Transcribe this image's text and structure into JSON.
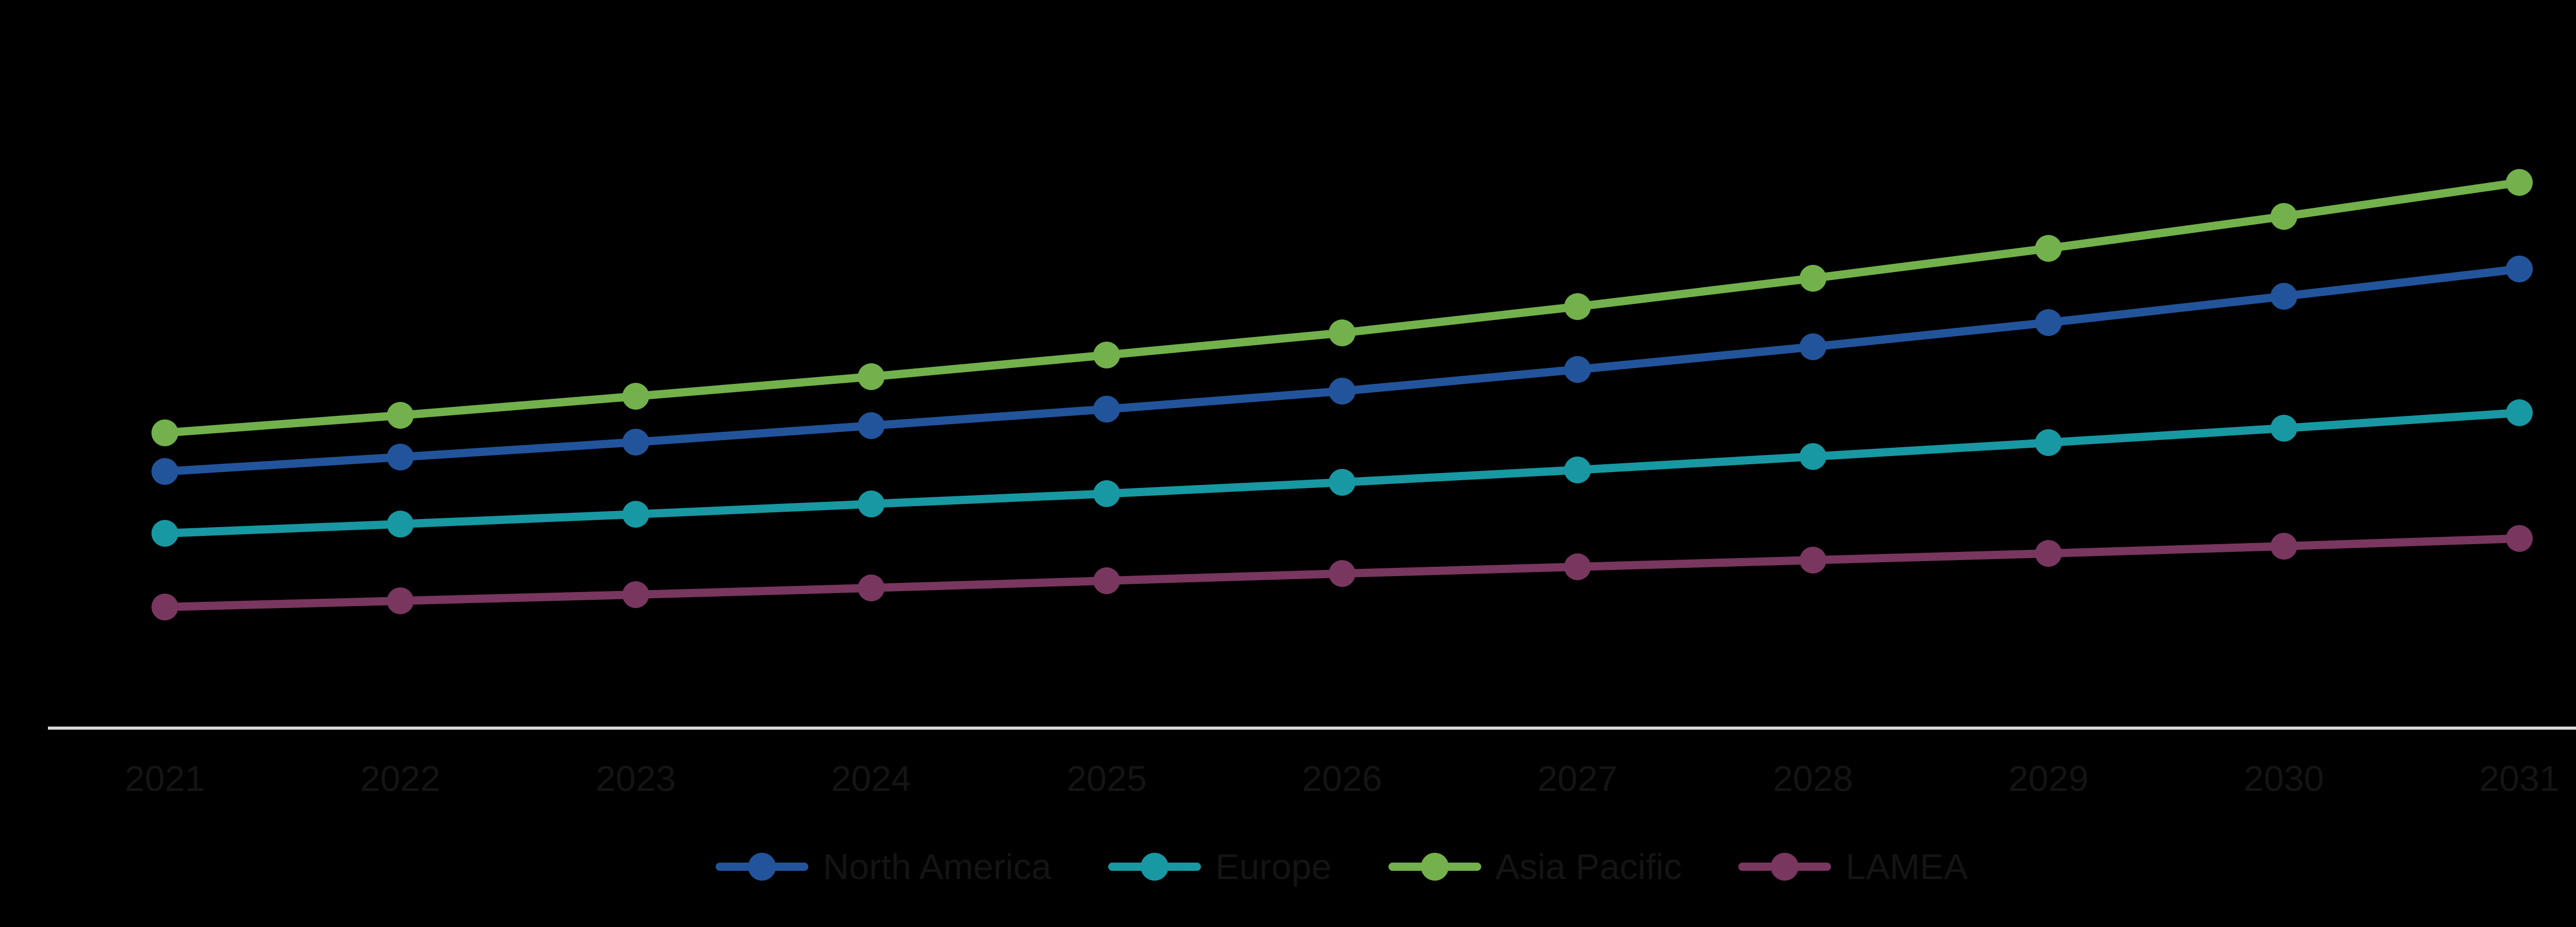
{
  "chart_data": {
    "type": "line",
    "title": "",
    "xlabel": "",
    "ylabel": "",
    "categories": [
      "2021",
      "2022",
      "2023",
      "2024",
      "2025",
      "2026",
      "2027",
      "2028",
      "2029",
      "2030",
      "2031"
    ],
    "series": [
      {
        "name": "North America",
        "color": "#22549C",
        "values": [
          50.0,
          52.8,
          55.7,
          58.9,
          62.1,
          65.6,
          69.8,
          74.2,
          78.9,
          84.0,
          89.3
        ]
      },
      {
        "name": "Europe",
        "color": "#1898A2",
        "values": [
          38.0,
          39.8,
          41.7,
          43.7,
          45.7,
          47.9,
          50.3,
          52.9,
          55.6,
          58.4,
          61.4
        ]
      },
      {
        "name": "Asia Pacific",
        "color": "#72B14B",
        "values": [
          57.5,
          60.9,
          64.6,
          68.4,
          72.6,
          76.9,
          82.0,
          87.5,
          93.3,
          99.5,
          106.1
        ]
      },
      {
        "name": "LAMEA",
        "color": "#79365F",
        "values": [
          23.7,
          24.9,
          26.1,
          27.4,
          28.8,
          30.2,
          31.5,
          32.8,
          34.1,
          35.5,
          37.0
        ]
      }
    ],
    "legend_position": "bottom-center",
    "grid": false,
    "y_axis_visible": false,
    "x_axis_line_color": "#D9D9D9",
    "note": "No y-axis ticks or labels are visible in the image; series values are relative units estimated from data-point heights above the x-axis line. Years 2021-2031 on the x-axis."
  },
  "colors": {
    "background": "#000000",
    "axis_line": "#D9D9D9",
    "label_text": "#141414"
  },
  "legend": {
    "marker_shape": "line-with-dot"
  }
}
